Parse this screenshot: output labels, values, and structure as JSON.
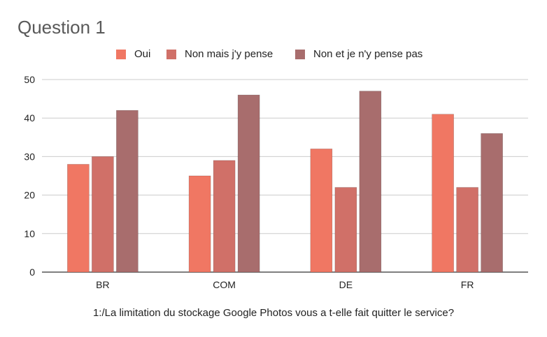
{
  "chart_data": {
    "type": "bar",
    "title": "Question 1",
    "xlabel": "1:/La limitation du stockage Google Photos vous a t-elle fait quitter le service?",
    "ylabel": "",
    "ylim": [
      0,
      50
    ],
    "yticks": [
      0,
      10,
      20,
      30,
      40,
      50
    ],
    "grid": true,
    "legend_position": "top",
    "categories": [
      "BR",
      "COM",
      "DE",
      "FR"
    ],
    "series": [
      {
        "name": "Oui",
        "color": "#f07763",
        "values": [
          28,
          25,
          32,
          41
        ]
      },
      {
        "name": "Non mais j'y pense",
        "color": "#d07068",
        "values": [
          30,
          29,
          22,
          22
        ]
      },
      {
        "name": "Non et je n'y pense pas",
        "color": "#a86d6d",
        "values": [
          42,
          46,
          47,
          36
        ]
      }
    ]
  }
}
